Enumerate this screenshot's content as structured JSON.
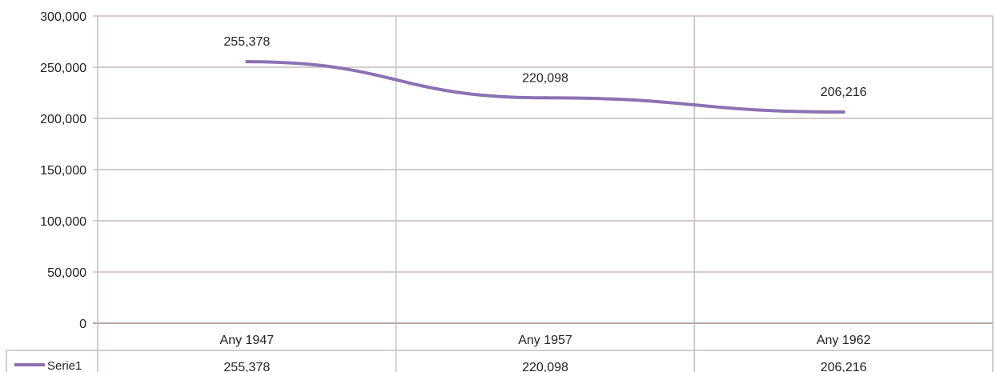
{
  "chart_data": {
    "type": "line",
    "categories": [
      "Any 1947",
      "Any 1957",
      "Any 1962"
    ],
    "series": [
      {
        "name": "Serie1",
        "values": [
          255378,
          220098,
          206216
        ]
      }
    ],
    "data_labels": [
      "255,378",
      "220,098",
      "206,216"
    ],
    "ytick_labels": [
      "0",
      "50,000",
      "100,000",
      "150,000",
      "200,000",
      "250,000",
      "300,000"
    ],
    "ylim": [
      0,
      300000
    ],
    "grid": true,
    "legend": "data-table-left",
    "data_table": {
      "series_label": "Serie1",
      "values": [
        "255,378",
        "220,098",
        "206,216"
      ]
    },
    "colors": {
      "line": "#8c71b4",
      "grid": "#c9bcbc",
      "axis": "#b8aaaa"
    }
  }
}
